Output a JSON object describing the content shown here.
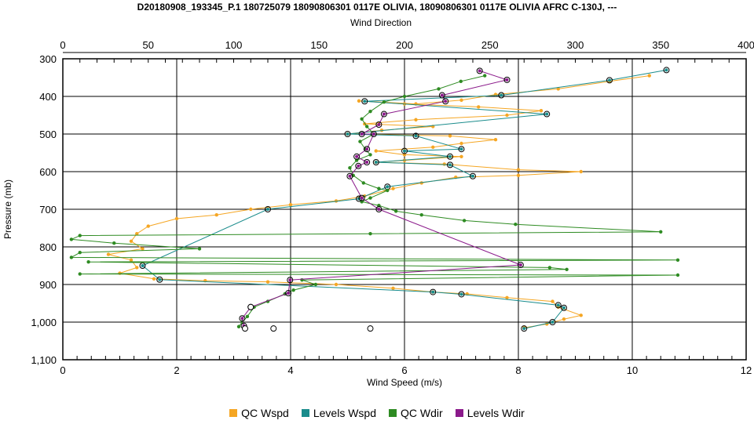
{
  "chart_data": {
    "type": "line",
    "title": "D20180908_193345_P.1 180725079 18090806301 0117E OLIVIA, 18090806301 0117E OLIVIA AFRC C-130J, ---",
    "xlabel_bottom": "Wind Speed (m/s)",
    "xlabel_top": "Wind Direction",
    "ylabel": "Pressure (mb)",
    "xlim_bottom": [
      0,
      12
    ],
    "xlim_top": [
      0,
      400
    ],
    "ylim": [
      300,
      1100
    ],
    "y_inverted": true,
    "grid": true,
    "legend_position": "bottom",
    "x_ticks_bottom": [
      "0",
      "2",
      "4",
      "6",
      "8",
      "10",
      "12"
    ],
    "x_ticks_top": [
      "0",
      "50",
      "100",
      "150",
      "200",
      "250",
      "300",
      "350",
      "400"
    ],
    "y_ticks": [
      "300",
      "400",
      "500",
      "600",
      "700",
      "800",
      "900",
      "1,000",
      "1,100"
    ],
    "series": [
      {
        "name": "QC Wspd",
        "axis": "bottom",
        "color": "#f5a623",
        "points": [
          [
            10.3,
            345
          ],
          [
            9.6,
            360
          ],
          [
            8.7,
            380
          ],
          [
            7.6,
            395
          ],
          [
            7.0,
            410
          ],
          [
            6.2,
            420
          ],
          [
            5.2,
            412
          ],
          [
            6.0,
            420
          ],
          [
            7.3,
            428
          ],
          [
            8.4,
            438
          ],
          [
            7.8,
            450
          ],
          [
            6.2,
            462
          ],
          [
            5.3,
            473
          ],
          [
            6.5,
            480
          ],
          [
            5.6,
            490
          ],
          [
            5.0,
            500
          ],
          [
            6.8,
            505
          ],
          [
            7.6,
            515
          ],
          [
            7.0,
            525
          ],
          [
            6.5,
            535
          ],
          [
            5.5,
            545
          ],
          [
            6.0,
            555
          ],
          [
            7.0,
            560
          ],
          [
            6.0,
            570
          ],
          [
            5.5,
            575
          ],
          [
            6.7,
            580
          ],
          [
            8.0,
            595
          ],
          [
            9.1,
            600
          ],
          [
            8.0,
            610
          ],
          [
            6.9,
            615
          ],
          [
            6.3,
            630
          ],
          [
            5.8,
            645
          ],
          [
            5.3,
            665
          ],
          [
            4.8,
            678
          ],
          [
            4.0,
            688
          ],
          [
            3.3,
            700
          ],
          [
            2.7,
            715
          ],
          [
            2.0,
            725
          ],
          [
            1.5,
            745
          ],
          [
            1.3,
            765
          ],
          [
            1.2,
            785
          ],
          [
            1.4,
            805
          ],
          [
            0.8,
            820
          ],
          [
            1.2,
            835
          ],
          [
            1.3,
            855
          ],
          [
            1.0,
            870
          ],
          [
            1.6,
            885
          ],
          [
            2.5,
            890
          ],
          [
            3.6,
            893
          ],
          [
            4.8,
            900
          ],
          [
            5.8,
            910
          ],
          [
            6.5,
            920
          ],
          [
            7.1,
            925
          ],
          [
            7.8,
            935
          ],
          [
            8.6,
            945
          ],
          [
            8.7,
            960
          ],
          [
            9.1,
            982
          ],
          [
            8.8,
            992
          ],
          [
            8.5,
            1005
          ],
          [
            8.1,
            1015
          ]
        ]
      },
      {
        "name": "Levels Wspd",
        "axis": "bottom",
        "color": "#1a8c8c",
        "points": [
          [
            10.6,
            330
          ],
          [
            9.6,
            357
          ],
          [
            7.7,
            397
          ],
          [
            5.3,
            413
          ],
          [
            8.5,
            447
          ],
          [
            5.0,
            500
          ],
          [
            6.2,
            505
          ],
          [
            7.0,
            540
          ],
          [
            6.0,
            545
          ],
          [
            6.8,
            560
          ],
          [
            5.5,
            575
          ],
          [
            6.8,
            582
          ],
          [
            7.2,
            612
          ],
          [
            5.7,
            640
          ],
          [
            5.2,
            672
          ],
          [
            3.6,
            700
          ],
          [
            1.4,
            850
          ],
          [
            1.7,
            887
          ],
          [
            6.5,
            920
          ],
          [
            7.0,
            926
          ],
          [
            8.7,
            955
          ],
          [
            8.8,
            962
          ],
          [
            8.6,
            1000
          ],
          [
            8.1,
            1017
          ]
        ]
      },
      {
        "name": "QC Wdir",
        "axis": "top",
        "color": "#2e8b22",
        "points": [
          [
            247,
            345
          ],
          [
            233,
            360
          ],
          [
            220,
            380
          ],
          [
            200,
            400
          ],
          [
            188,
            415
          ],
          [
            180,
            440
          ],
          [
            175,
            460
          ],
          [
            178,
            480
          ],
          [
            182,
            500
          ],
          [
            174,
            520
          ],
          [
            177,
            540
          ],
          [
            180,
            555
          ],
          [
            172,
            570
          ],
          [
            168,
            590
          ],
          [
            170,
            610
          ],
          [
            176,
            630
          ],
          [
            185,
            645
          ],
          [
            190,
            650
          ],
          [
            180,
            670
          ],
          [
            175,
            680
          ],
          [
            185,
            690
          ],
          [
            195,
            705
          ],
          [
            210,
            715
          ],
          [
            235,
            730
          ],
          [
            265,
            740
          ],
          [
            350,
            760
          ],
          [
            180,
            765
          ],
          [
            10,
            770
          ],
          [
            5,
            780
          ],
          [
            30,
            790
          ],
          [
            80,
            805
          ],
          [
            10,
            815
          ],
          [
            5,
            828
          ],
          [
            360,
            835
          ],
          [
            15,
            840
          ],
          [
            285,
            855
          ],
          [
            295,
            860
          ],
          [
            10,
            872
          ],
          [
            360,
            875
          ],
          [
            140,
            888
          ],
          [
            148,
            900
          ],
          [
            135,
            915
          ],
          [
            130,
            925
          ],
          [
            120,
            945
          ],
          [
            112,
            960
          ],
          [
            108,
            985
          ],
          [
            105,
            1000
          ],
          [
            103,
            1012
          ]
        ]
      },
      {
        "name": "Levels Wdir",
        "axis": "top",
        "color": "#8b1a8b",
        "points": [
          [
            244,
            332
          ],
          [
            260,
            356
          ],
          [
            222,
            397
          ],
          [
            224,
            413
          ],
          [
            188,
            447
          ],
          [
            185,
            475
          ],
          [
            175,
            500
          ],
          [
            182,
            500
          ],
          [
            178,
            540
          ],
          [
            172,
            560
          ],
          [
            178,
            575
          ],
          [
            173,
            585
          ],
          [
            168,
            612
          ],
          [
            175,
            670
          ],
          [
            185,
            700
          ],
          [
            268,
            848
          ],
          [
            133,
            888
          ],
          [
            132,
            923
          ],
          [
            110,
            960
          ],
          [
            105,
            990
          ],
          [
            106,
            1010
          ]
        ]
      }
    ],
    "open_circles": [
      [
        3.2,
        1017
      ],
      [
        3.7,
        1017
      ],
      [
        5.4,
        1017
      ],
      [
        3.3,
        960
      ]
    ]
  }
}
